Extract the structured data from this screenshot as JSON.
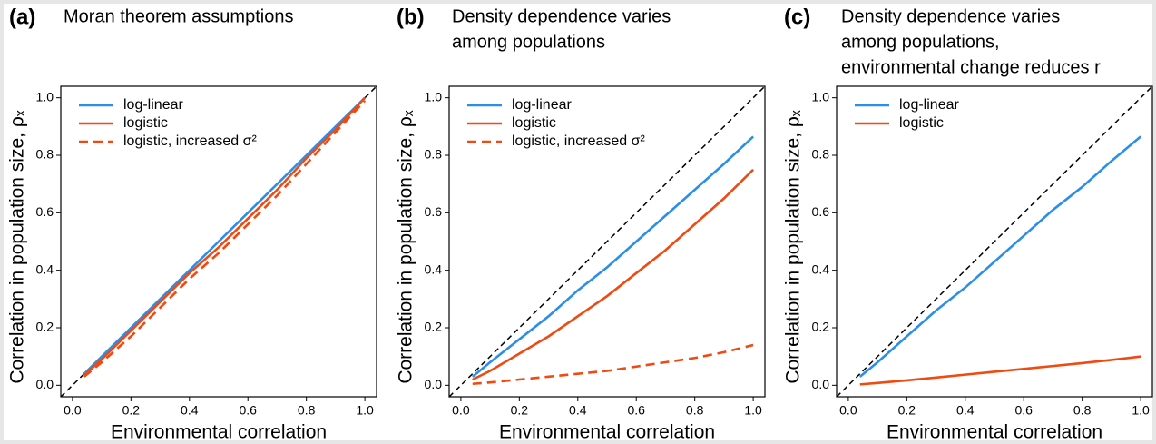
{
  "chart_data": [
    {
      "type": "line",
      "panel_label": "(a)",
      "title": [
        "Moran theorem assumptions"
      ],
      "xlabel": "Environmental correlation",
      "ylabel": "Correlation in population size,  ρₓ",
      "x": [
        0.04,
        0.1,
        0.2,
        0.3,
        0.4,
        0.5,
        0.6,
        0.7,
        0.8,
        0.9,
        1.0
      ],
      "series": [
        {
          "name": "log-linear",
          "color": "#2b8fe8",
          "dash": false,
          "values": [
            0.04,
            0.1,
            0.2,
            0.3,
            0.4,
            0.5,
            0.6,
            0.7,
            0.8,
            0.9,
            1.0
          ]
        },
        {
          "name": "logistic",
          "color": "#f04a12",
          "dash": false,
          "values": [
            0.035,
            0.09,
            0.19,
            0.29,
            0.39,
            0.48,
            0.58,
            0.68,
            0.79,
            0.89,
            1.0
          ]
        },
        {
          "name": "logistic, increased σ²",
          "color": "#f04a12",
          "dash": true,
          "values": [
            0.03,
            0.08,
            0.17,
            0.27,
            0.37,
            0.46,
            0.56,
            0.66,
            0.77,
            0.88,
            0.99
          ]
        }
      ],
      "identity_line": true,
      "xlim": [
        -0.04,
        1.04
      ],
      "ylim": [
        -0.04,
        1.04
      ],
      "xticks": [
        {
          "value": 0,
          "label": "0.0"
        },
        0.2,
        0.4,
        0.6,
        0.8,
        {
          "value": 1,
          "label": "1.0"
        }
      ],
      "yticks": [
        {
          "value": 0,
          "label": "0.0"
        },
        0.2,
        0.4,
        0.6,
        0.8,
        {
          "value": 1,
          "label": "1.0"
        }
      ]
    },
    {
      "type": "line",
      "panel_label": "(b)",
      "title": [
        "Density dependence varies",
        "among populations"
      ],
      "xlabel": "Environmental correlation",
      "ylabel": "Correlation in population size,  ρₓ",
      "x": [
        0.04,
        0.1,
        0.2,
        0.3,
        0.4,
        0.5,
        0.6,
        0.7,
        0.8,
        0.9,
        1.0
      ],
      "series": [
        {
          "name": "log-linear",
          "color": "#2b8fe8",
          "dash": false,
          "values": [
            0.03,
            0.08,
            0.16,
            0.24,
            0.33,
            0.41,
            0.5,
            0.59,
            0.68,
            0.77,
            0.865
          ]
        },
        {
          "name": "logistic",
          "color": "#f04a12",
          "dash": false,
          "values": [
            0.02,
            0.05,
            0.11,
            0.17,
            0.24,
            0.31,
            0.39,
            0.47,
            0.56,
            0.65,
            0.75
          ]
        },
        {
          "name": "logistic, increased σ²",
          "color": "#f04a12",
          "dash": true,
          "values": [
            0.005,
            0.01,
            0.02,
            0.03,
            0.04,
            0.05,
            0.065,
            0.08,
            0.095,
            0.115,
            0.14
          ]
        }
      ],
      "identity_line": true,
      "xlim": [
        -0.04,
        1.04
      ],
      "ylim": [
        -0.04,
        1.04
      ],
      "xticks": [
        {
          "value": 0,
          "label": "0.0"
        },
        0.2,
        0.4,
        0.6,
        0.8,
        {
          "value": 1,
          "label": "1.0"
        }
      ],
      "yticks": [
        {
          "value": 0,
          "label": "0.0"
        },
        0.2,
        0.4,
        0.6,
        0.8,
        {
          "value": 1,
          "label": "1.0"
        }
      ]
    },
    {
      "type": "line",
      "panel_label": "(c)",
      "title": [
        "Density dependence varies",
        "among populations,",
        "environmental change reduces r"
      ],
      "xlabel": "Environmental correlation",
      "ylabel": "Correlation in population size,  ρₓ",
      "x": [
        0.04,
        0.1,
        0.2,
        0.3,
        0.4,
        0.5,
        0.6,
        0.7,
        0.8,
        0.9,
        1.0
      ],
      "series": [
        {
          "name": "log-linear",
          "color": "#2b8fe8",
          "dash": false,
          "values": [
            0.03,
            0.08,
            0.17,
            0.26,
            0.34,
            0.43,
            0.52,
            0.61,
            0.69,
            0.78,
            0.865
          ]
        },
        {
          "name": "logistic",
          "color": "#f04a12",
          "dash": false,
          "values": [
            0.003,
            0.008,
            0.017,
            0.027,
            0.037,
            0.047,
            0.057,
            0.067,
            0.077,
            0.088,
            0.1
          ]
        }
      ],
      "identity_line": true,
      "xlim": [
        -0.04,
        1.04
      ],
      "ylim": [
        -0.04,
        1.04
      ],
      "xticks": [
        {
          "value": 0,
          "label": "0.0"
        },
        0.2,
        0.4,
        0.6,
        0.8,
        {
          "value": 1,
          "label": "1.0"
        }
      ],
      "yticks": [
        {
          "value": 0,
          "label": "0.0"
        },
        0.2,
        0.4,
        0.6,
        0.8,
        {
          "value": 1,
          "label": "1.0"
        }
      ]
    }
  ]
}
